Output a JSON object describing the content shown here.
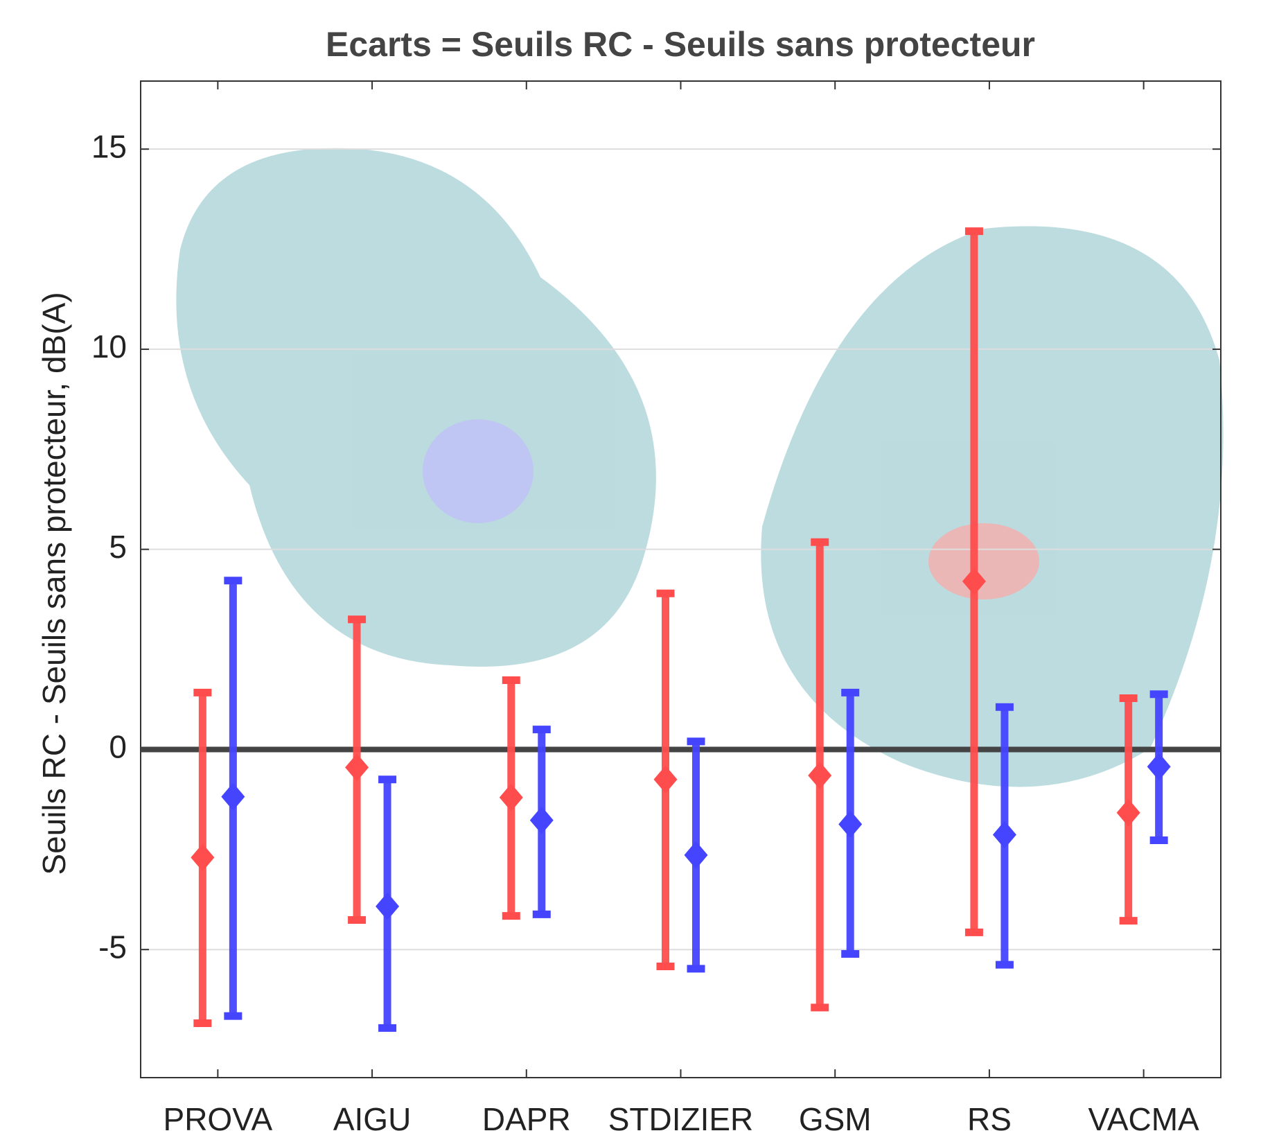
{
  "chart_data": {
    "type": "errorbar",
    "title": "Ecarts = Seuils RC - Seuils sans protecteur",
    "y_label": "Seuils RC - Seuils sans protecteur, dB(A)",
    "categories": [
      "PROVA",
      "AIGU",
      "DAPR",
      "STDIZIER",
      "GSM",
      "RS",
      "VACMA"
    ],
    "series": [
      {
        "color": "#ff4d4d",
        "values": [
          -2.7,
          -0.45,
          -1.2,
          -0.75,
          -0.65,
          4.2,
          -1.58
        ],
        "low": [
          -6.84,
          -4.26,
          -4.16,
          -5.42,
          -6.45,
          -4.57,
          -4.28
        ],
        "high": [
          1.42,
          3.25,
          1.73,
          3.9,
          5.18,
          12.95,
          1.28
        ]
      },
      {
        "color": "#4545ff",
        "values": [
          -1.18,
          -3.92,
          -1.77,
          -2.64,
          -1.87,
          -2.13,
          -0.43
        ],
        "low": [
          -6.66,
          -6.96,
          -4.12,
          -5.48,
          -5.11,
          -5.38,
          -2.27
        ],
        "high": [
          4.22,
          -0.75,
          0.5,
          0.2,
          1.42,
          1.06,
          1.38
        ]
      }
    ],
    "ylim": [
      -8.2,
      16.7
    ],
    "yticks": [
      -5,
      0,
      5,
      10,
      15
    ],
    "grid": true,
    "zero_line": true
  }
}
